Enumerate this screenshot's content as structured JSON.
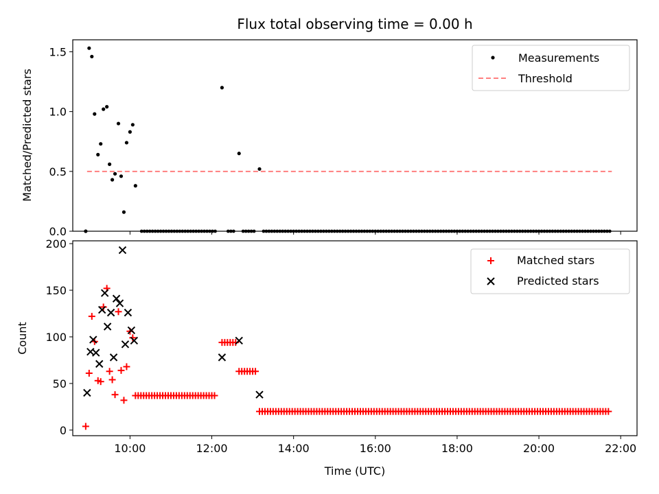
{
  "colors": {
    "measurement": "#000000",
    "threshold": "#ff7f7f",
    "matched": "#ff0000",
    "predicted": "#000000"
  },
  "chart_data": [
    {
      "type": "scatter",
      "title": "Flux total observing time = 0.00 h",
      "xlabel": "",
      "ylabel": "Matched/Predicted stars",
      "xlim": [
        "08:36",
        "22:24"
      ],
      "ylim": [
        0,
        1.6
      ],
      "xticks": [
        "10:00",
        "12:00",
        "14:00",
        "16:00",
        "18:00",
        "20:00",
        "22:00"
      ],
      "xticklabels_shown": false,
      "yticks": [
        0.0,
        0.5,
        1.0,
        1.5
      ],
      "yticklabels": [
        "0.0",
        "0.5",
        "1.0",
        "1.5"
      ],
      "legend": {
        "position": "upper right",
        "entries": [
          "Measurements",
          "Threshold"
        ]
      },
      "grid": false,
      "series": [
        {
          "name": "Measurements",
          "marker": "dot",
          "points": [
            [
              "08:55",
              0.0
            ],
            [
              "09:00",
              1.53
            ],
            [
              "09:04",
              1.46
            ],
            [
              "09:08",
              0.98
            ],
            [
              "09:13",
              0.64
            ],
            [
              "09:17",
              0.73
            ],
            [
              "09:21",
              1.02
            ],
            [
              "09:26",
              1.04
            ],
            [
              "09:30",
              0.56
            ],
            [
              "09:34",
              0.43
            ],
            [
              "09:38",
              0.48
            ],
            [
              "09:43",
              0.9
            ],
            [
              "09:47",
              0.46
            ],
            [
              "09:51",
              0.16
            ],
            [
              "09:55",
              0.74
            ],
            [
              "10:00",
              0.83
            ],
            [
              "10:04",
              0.89
            ],
            [
              "10:08",
              0.38
            ],
            [
              "12:15",
              1.2
            ],
            [
              "12:40",
              0.65
            ],
            [
              "13:10",
              0.52
            ]
          ],
          "zero_runs": [
            {
              "from": "10:17",
              "to": "12:06",
              "step_min": 4
            },
            {
              "from": "12:24",
              "to": "12:34",
              "step_min": 4
            },
            {
              "from": "12:46",
              "to": "13:04",
              "step_min": 4
            },
            {
              "from": "13:16",
              "to": "21:45",
              "step_min": 4
            }
          ]
        },
        {
          "name": "Threshold",
          "style": "dashed",
          "points": [
            [
              "08:57",
              0.5
            ],
            [
              "21:47",
              0.5
            ]
          ]
        }
      ]
    },
    {
      "type": "scatter",
      "title": "",
      "xlabel": "Time (UTC)",
      "ylabel": "Count",
      "xlim": [
        "08:36",
        "22:24"
      ],
      "ylim": [
        -6,
        203
      ],
      "xticks": [
        "10:00",
        "12:00",
        "14:00",
        "16:00",
        "18:00",
        "20:00",
        "22:00"
      ],
      "xticklabels": [
        "10:00",
        "12:00",
        "14:00",
        "16:00",
        "18:00",
        "20:00",
        "22:00"
      ],
      "yticks": [
        0,
        50,
        100,
        150,
        200
      ],
      "yticklabels": [
        "0",
        "50",
        "100",
        "150",
        "200"
      ],
      "legend": {
        "position": "upper right",
        "entries": [
          "Matched stars",
          "Predicted stars"
        ]
      },
      "grid": false,
      "series": [
        {
          "name": "Matched stars",
          "marker": "plus",
          "points": [
            [
              "08:55",
              4
            ],
            [
              "09:00",
              61
            ],
            [
              "09:04",
              122
            ],
            [
              "09:08",
              95
            ],
            [
              "09:13",
              53
            ],
            [
              "09:17",
              52
            ],
            [
              "09:21",
              132
            ],
            [
              "09:26",
              152
            ],
            [
              "09:30",
              63
            ],
            [
              "09:34",
              54
            ],
            [
              "09:38",
              38
            ],
            [
              "09:43",
              127
            ],
            [
              "09:47",
              64
            ],
            [
              "09:51",
              32
            ],
            [
              "09:55",
              68
            ],
            [
              "10:00",
              106
            ],
            [
              "10:04",
              99
            ],
            [
              "12:15",
              94
            ],
            [
              "12:40",
              63
            ],
            [
              "13:10",
              20
            ]
          ],
          "runs": [
            {
              "from": "10:08",
              "to": "12:06",
              "step_min": 4,
              "value": 37
            },
            {
              "from": "12:19",
              "to": "12:36",
              "step_min": 4,
              "value": 94
            },
            {
              "from": "12:44",
              "to": "13:04",
              "step_min": 4,
              "value": 63
            },
            {
              "from": "13:14",
              "to": "21:45",
              "step_min": 4,
              "value": 20
            }
          ]
        },
        {
          "name": "Predicted stars",
          "marker": "x",
          "points": [
            [
              "08:57",
              40
            ],
            [
              "09:02",
              84
            ],
            [
              "09:06",
              97
            ],
            [
              "09:10",
              83
            ],
            [
              "09:15",
              71
            ],
            [
              "09:19",
              129
            ],
            [
              "09:23",
              147
            ],
            [
              "09:27",
              111
            ],
            [
              "09:32",
              126
            ],
            [
              "09:36",
              78
            ],
            [
              "09:40",
              141
            ],
            [
              "09:45",
              136
            ],
            [
              "09:49",
              193
            ],
            [
              "09:53",
              92
            ],
            [
              "09:57",
              126
            ],
            [
              "10:02",
              107
            ],
            [
              "10:06",
              96
            ],
            [
              "12:15",
              78
            ],
            [
              "12:40",
              96
            ],
            [
              "13:10",
              38
            ]
          ]
        }
      ]
    }
  ]
}
